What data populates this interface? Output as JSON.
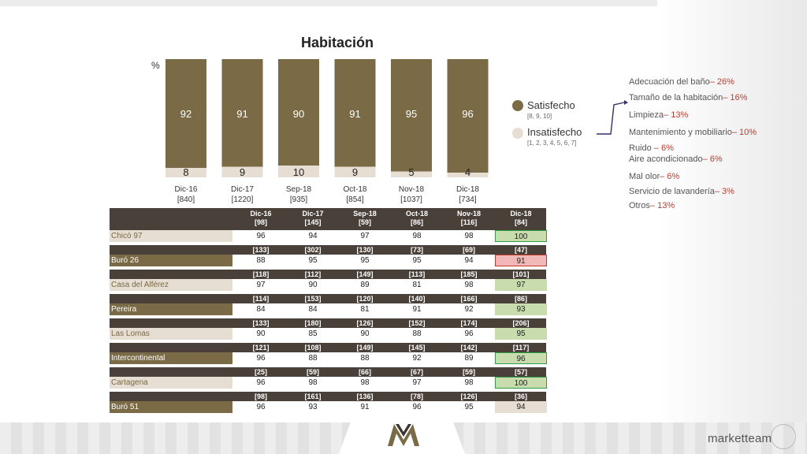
{
  "colors": {
    "satisfied": "#7a6a45",
    "unsatisfied": "#e6ddd3",
    "dark_header": "#4a403a",
    "arrow": "#3d2b6b",
    "highlight_green": "#c8dcae",
    "highlight_green_border": "#2e9e44",
    "highlight_red": "#f2b8b8",
    "highlight_red_border": "#c0392b"
  },
  "chart_data": {
    "type": "bar",
    "stacked": true,
    "title": "Habitación",
    "ylabel": "%",
    "ylim": [
      0,
      100
    ],
    "categories": [
      "Dic-16",
      "Dic-17",
      "Sep-18",
      "Oct-18",
      "Nov-18",
      "Dic-18"
    ],
    "bases": [
      "[840]",
      "[1220]",
      "[935]",
      "[854]",
      "[1037]",
      "[734]"
    ],
    "series": [
      {
        "name": "Satisfecho",
        "values": [
          92,
          91,
          90,
          91,
          95,
          96
        ]
      },
      {
        "name": "Insatisfecho",
        "values": [
          8,
          9,
          10,
          9,
          5,
          4
        ]
      }
    ],
    "legend": [
      {
        "label": "Satisfecho",
        "sub": "[8, 9, 10]"
      },
      {
        "label": "Insatisfecho",
        "sub": "[1, 2, 3, 4, 5, 6, 7]"
      }
    ]
  },
  "reasons": [
    {
      "label": "Adecuación del baño",
      "value": "– 26%"
    },
    {
      "label": "Tamaño de la habitación",
      "value": "– 16%"
    },
    {
      "label": "Limpieza",
      "value": "– 13%"
    },
    {
      "label": "Mantenimiento y mobiliario",
      "value": "– 10%"
    },
    {
      "label": "Ruido ",
      "value": "– 6%"
    },
    {
      "label": "Aire acondicionado",
      "value": "– 6%"
    },
    {
      "label": "Mal olor",
      "value": "– 6%"
    },
    {
      "label": "Servicio de lavandería",
      "value": "– 3%"
    },
    {
      "label": "Otros",
      "value": "– 13%"
    }
  ],
  "table": {
    "columns": [
      "Dic-16",
      "Dic-17",
      "Sep-18",
      "Oct-18",
      "Nov-18",
      "Dic-18"
    ],
    "rows": [
      {
        "name": "Chicó 97",
        "bases": [
          "[98]",
          "[145]",
          "[59]",
          "[86]",
          "[116]",
          "[84]"
        ],
        "values": [
          "96",
          "94",
          "97",
          "98",
          "98",
          "100"
        ],
        "highlight": "green"
      },
      {
        "name": "Buró 26",
        "bases": [
          "[133]",
          "[302]",
          "[130]",
          "[73]",
          "[69]",
          "[47]"
        ],
        "values": [
          "88",
          "95",
          "95",
          "95",
          "94",
          "91"
        ],
        "highlight": "red"
      },
      {
        "name": "Casa del Alférez",
        "bases": [
          "[118]",
          "[112]",
          "[149]",
          "[113]",
          "[185]",
          "[101]"
        ],
        "values": [
          "97",
          "90",
          "89",
          "81",
          "98",
          "97"
        ],
        "highlight": "lightgreen"
      },
      {
        "name": "Pereira",
        "bases": [
          "[114]",
          "[153]",
          "[120]",
          "[140]",
          "[166]",
          "[86]"
        ],
        "values": [
          "84",
          "84",
          "81",
          "91",
          "92",
          "93"
        ],
        "highlight": "lightgreen"
      },
      {
        "name": "Las Lomas",
        "bases": [
          "[133]",
          "[180]",
          "[126]",
          "[152]",
          "[174]",
          "[206]"
        ],
        "values": [
          "90",
          "85",
          "90",
          "88",
          "96",
          "95"
        ],
        "highlight": "lightgreen"
      },
      {
        "name": "Intercontinental",
        "bases": [
          "[121]",
          "[108]",
          "[149]",
          "[145]",
          "[142]",
          "[117]"
        ],
        "values": [
          "96",
          "88",
          "88",
          "92",
          "89",
          "96"
        ],
        "highlight": "green"
      },
      {
        "name": "Cartagena",
        "bases": [
          "[25]",
          "[59]",
          "[66]",
          "[67]",
          "[59]",
          "[57]"
        ],
        "values": [
          "96",
          "98",
          "98",
          "97",
          "98",
          "100"
        ],
        "highlight": "green"
      },
      {
        "name": "Buró 51",
        "bases": [
          "[98]",
          "[161]",
          "[136]",
          "[78]",
          "[126]",
          "[36]"
        ],
        "values": [
          "96",
          "93",
          "91",
          "96",
          "95",
          "94"
        ],
        "highlight": "none"
      }
    ]
  },
  "brand": {
    "name": "marketteam"
  }
}
